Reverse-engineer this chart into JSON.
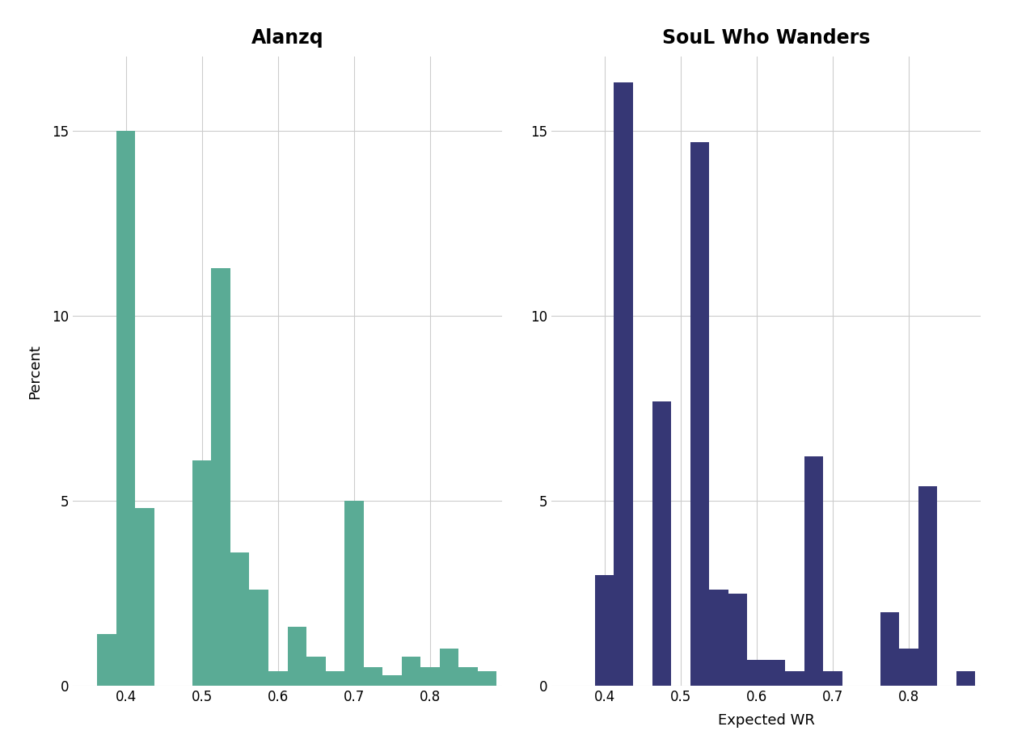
{
  "left_title": "Alanzq",
  "right_title": "SouL Who Wanders",
  "ylabel": "Percent",
  "xlabel": "Expected WR",
  "background_color": "#ffffff",
  "left_color": "#5aab95",
  "right_color": "#363775",
  "left_bars": {
    "lefts": [
      0.3625,
      0.3875,
      0.4125,
      0.4375,
      0.4875,
      0.5125,
      0.5375,
      0.5625,
      0.5875,
      0.6125,
      0.6375,
      0.6625,
      0.6875,
      0.7125,
      0.7375,
      0.7625,
      0.7875,
      0.8125,
      0.8375,
      0.8625
    ],
    "heights": [
      1.4,
      15.0,
      4.8,
      0.0,
      6.1,
      11.3,
      3.6,
      2.6,
      0.4,
      1.6,
      0.8,
      0.4,
      5.0,
      0.5,
      0.3,
      0.8,
      0.5,
      1.0,
      0.5,
      0.4
    ]
  },
  "right_bars": {
    "lefts": [
      0.3625,
      0.3875,
      0.4125,
      0.4625,
      0.4875,
      0.5125,
      0.5375,
      0.5625,
      0.5875,
      0.6125,
      0.6375,
      0.6625,
      0.6875,
      0.7625,
      0.7875,
      0.8125,
      0.8625
    ],
    "heights": [
      0.0,
      3.0,
      16.3,
      7.7,
      0.0,
      14.7,
      2.6,
      2.5,
      0.7,
      0.7,
      0.4,
      6.2,
      0.4,
      2.0,
      1.0,
      5.4,
      0.4
    ]
  },
  "ylim": [
    0,
    17
  ],
  "xlim": [
    0.33,
    0.895
  ],
  "yticks": [
    0,
    5,
    10,
    15
  ],
  "xticks": [
    0.4,
    0.5,
    0.6,
    0.7,
    0.8
  ],
  "bar_width": 0.025,
  "grid_color": "#cccccc",
  "title_fontsize": 17,
  "axis_fontsize": 13,
  "tick_fontsize": 12
}
